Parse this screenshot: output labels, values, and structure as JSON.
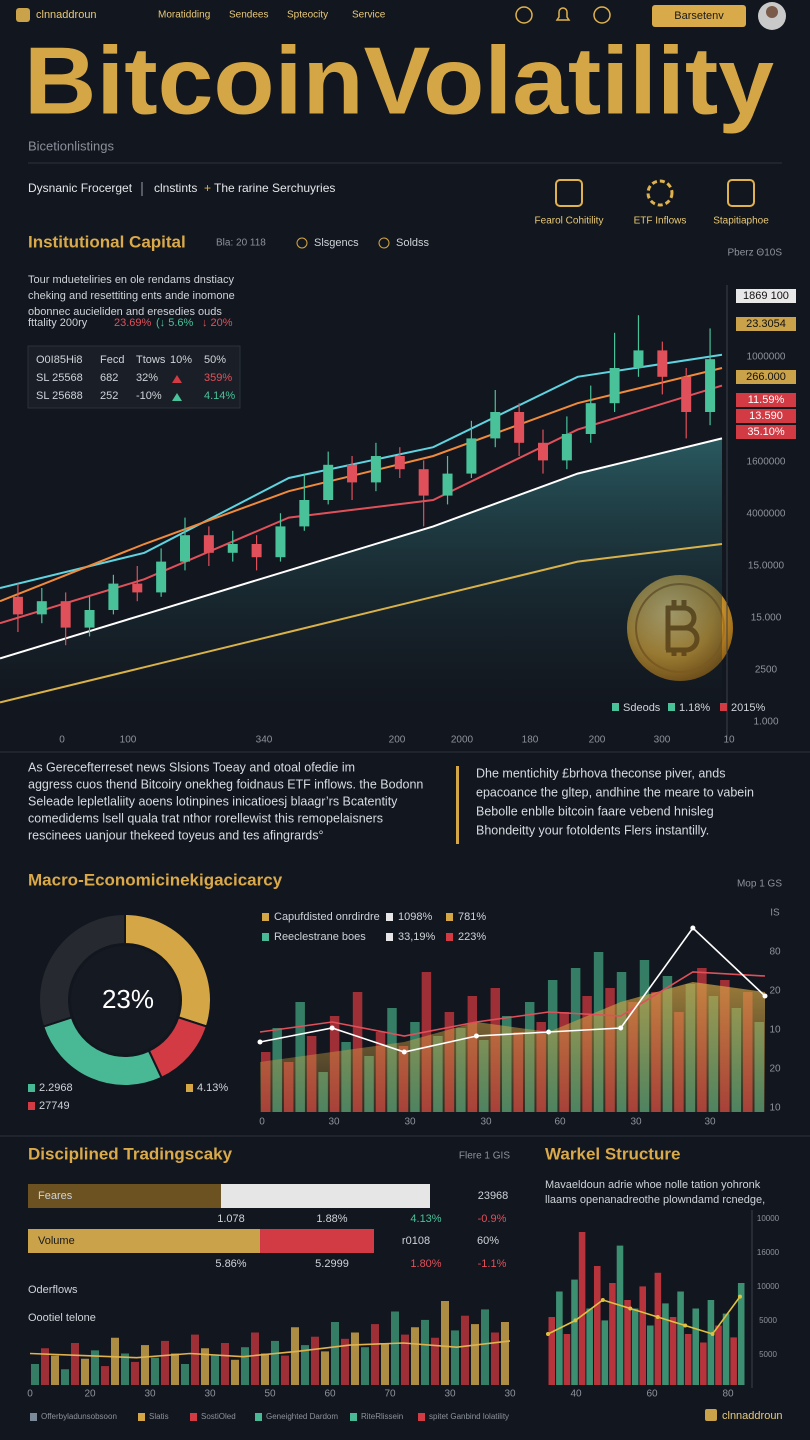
{
  "header": {
    "brand": "clnnaddroun",
    "nav": [
      "Moratidding",
      "Sendees",
      "Spteocity",
      "Service"
    ],
    "button": "Barsetenv"
  },
  "hero": {
    "title": "BitcoinVolatility",
    "subtitle": "Bicetionlistings",
    "tagline_left": "Dysnanic Frocerget",
    "tagline_mid": "clnstints",
    "tagline_arrow": "+",
    "tagline_right": "The rarine Serchuyries",
    "features": [
      "Fearol Cohitility",
      "ETF Inflows",
      "Stapitiaphoe"
    ]
  },
  "institutional": {
    "title": "Institutional Capital",
    "meta": "Bla: 20 118",
    "legend": [
      "Slsgencs",
      "Soldss"
    ],
    "corner": "Pberz Θ10S",
    "notes": [
      "Tour mdueteliries en ole rendams dnstiacy",
      "cheking and resettiting ents ande inomone",
      "obonnec aucieliden and eresedies ouds"
    ],
    "stats": [
      "fttality 200ry",
      "23.69%",
      "(↓ 5.6%",
      "↓ 20%"
    ],
    "table": [
      [
        "O0I85Hi8",
        "Fecd",
        "Ttows",
        "10%",
        "50%"
      ],
      [
        "SL 25568",
        "682",
        "32%",
        "359%"
      ],
      [
        "SL 25688",
        "252",
        "-10%",
        "4.14%"
      ]
    ]
  },
  "paragraphs": {
    "left": [
      "As Gerecefterreset news Slsions Toeay and otoal ofedie im",
      "aggress cuos thend Bitcoiry onekheg foidnaus ETF inflows. the Bodonn",
      "Seleade lepletlaliity aoens lotinpines inicatioesj blaagr’rs Bcatentity",
      "comedidems lsell quala trat nthor rorellewist this remopelaisners",
      "rescinees uanjour thekeed toyeus and tes afingrards°"
    ],
    "right": [
      "Dhe mentichity £brhova theconse piver, ands",
      "epacoance the gltep, andhine the meare to vabein",
      "Bebolle enblle bitcoin faare vebend hnisleg",
      "Bhondeitty your fotoldents Flers instantilly."
    ]
  },
  "macro": {
    "title": "Macro-Economicinekigacicarcy",
    "corner": "Mop 1 GS"
  },
  "trading": {
    "title": "Disciplined Tradingscaky",
    "corner": "Flere 1 GIS",
    "rows": [
      {
        "label": "Feares",
        "right": [
          "23968"
        ],
        "sub": [
          "1.078",
          "1.88%",
          "4.13%",
          "-0.9%"
        ],
        "segments": [
          48,
          52
        ],
        "colors": [
          "#6b5220",
          "#e6e6e6"
        ]
      },
      {
        "label": "Volume",
        "right": [
          "r0108",
          "60%"
        ],
        "sub": [
          "5.86%",
          "5.2999",
          "1.80%",
          "-1.1%"
        ],
        "segments": [
          57,
          28
        ],
        "colors": [
          "#c9a24a",
          "#d23a44"
        ]
      }
    ],
    "labels": [
      "Oderflows",
      "Oootiel telone"
    ],
    "legend": [
      "Offerbyladunsobsoon",
      "Slatis",
      "SostiOled",
      "Geneighted Dardom",
      "RiteRlissein",
      "spitet Ganbind lolatility"
    ]
  },
  "market": {
    "title": "Warkel Structure",
    "desc": [
      "Mavaeldoun adrie whoe nolle tation yohronk",
      "llaams openanadreothe plowndamd rcnedge,"
    ],
    "footer": "clnnaddroun"
  },
  "chart_data": [
    {
      "type": "candlestick",
      "ylim": [
        0,
        100
      ],
      "open": [
        28,
        24,
        27,
        21,
        25,
        31,
        29,
        36,
        42,
        38,
        40,
        37,
        44,
        50,
        58,
        54,
        60,
        57,
        51,
        56,
        64,
        70,
        63,
        59,
        65,
        72,
        80,
        84,
        78,
        70
      ],
      "high": [
        31,
        30,
        29,
        28,
        33,
        35,
        39,
        46,
        44,
        43,
        42,
        47,
        56,
        61,
        60,
        63,
        62,
        59,
        60,
        68,
        75,
        72,
        66,
        69,
        76,
        88,
        92,
        86,
        80,
        89
      ],
      "low": [
        20,
        22,
        17,
        19,
        24,
        27,
        28,
        34,
        35,
        36,
        34,
        36,
        43,
        49,
        50,
        52,
        55,
        44,
        49,
        55,
        62,
        60,
        56,
        57,
        63,
        70,
        78,
        74,
        64,
        67
      ],
      "close": [
        24,
        27,
        21,
        25,
        31,
        29,
        36,
        42,
        38,
        40,
        37,
        44,
        50,
        58,
        54,
        60,
        57,
        51,
        56,
        64,
        70,
        63,
        59,
        65,
        72,
        80,
        84,
        78,
        70,
        82
      ],
      "lines": [
        {
          "color": "#5fd3e0",
          "values": [
            30,
            38,
            55,
            62,
            78,
            83
          ]
        },
        {
          "color": "#f08a3c",
          "values": [
            27,
            40,
            52,
            60,
            72,
            80
          ]
        },
        {
          "color": "#e0505a",
          "values": [
            22,
            32,
            46,
            50,
            66,
            76
          ]
        },
        {
          "color": "#ffffff",
          "values": [
            14,
            24,
            34,
            44,
            56,
            64
          ]
        },
        {
          "color": "#d9b24a",
          "values": [
            4,
            12,
            20,
            28,
            36,
            40
          ]
        }
      ],
      "price_tags": [
        {
          "label": "1869 100",
          "box": "#e8e8e8"
        },
        {
          "label": "23.3054",
          "box": "#c9a24a"
        },
        {
          "label": "1000000"
        },
        {
          "label": "266.000",
          "box": "#c9a24a"
        },
        {
          "label": "11.59%",
          "box": "#d23a44"
        },
        {
          "label": "13.590",
          "box": "#d23a44"
        },
        {
          "label": "35.10%",
          "box": "#d23a44"
        },
        {
          "label": "1600000"
        },
        {
          "label": "4000000"
        },
        {
          "label": "15.0000"
        },
        {
          "label": "15.000"
        },
        {
          "label": "2500"
        },
        {
          "label": "1.000"
        }
      ],
      "x_labels": [
        "0",
        "100",
        "340",
        "200",
        "2000",
        "180",
        "200",
        "300",
        "10"
      ],
      "legend": [
        {
          "label": "Sdeods",
          "color": "#49c29a"
        },
        {
          "label": "1.18%",
          "color": "#49c29a"
        },
        {
          "label": "2015%",
          "color": "#d23a44"
        }
      ]
    },
    {
      "type": "pie",
      "center_label": "23%",
      "values": [
        30,
        13,
        27,
        30
      ],
      "colors": [
        "#d4a645",
        "#d23a44",
        "#49b894",
        "#262a30"
      ],
      "legend": [
        {
          "label": "2.2968",
          "color": "#49b894"
        },
        {
          "label": "27749",
          "color": "#d23a44"
        },
        {
          "label": "4.13%",
          "color": "#d4a645"
        }
      ]
    },
    {
      "type": "bar",
      "ylim": [
        0,
        100
      ],
      "colors": [
        "#b8343c",
        "#3d8f72"
      ],
      "values": [
        30,
        42,
        25,
        55,
        38,
        20,
        48,
        35,
        60,
        28,
        40,
        52,
        33,
        45,
        70,
        38,
        50,
        42,
        58,
        36,
        62,
        48,
        40,
        55,
        45,
        66,
        50,
        72,
        58,
        80,
        62,
        70,
        55,
        76,
        60,
        68,
        50,
        64,
        72,
        58,
        66,
        52,
        60,
        45
      ],
      "series": [
        {
          "color": "#d4a645",
          "values": [
            25,
            30,
            35,
            45,
            40,
            55,
            65,
            60
          ]
        },
        {
          "color": "#e0505a",
          "values": [
            40,
            45,
            38,
            45,
            50,
            48,
            70,
            68
          ]
        },
        {
          "color": "#ffffff",
          "values": [
            35,
            42,
            30,
            38,
            40,
            42,
            92,
            58
          ]
        }
      ],
      "legend": [
        {
          "label": "Capufdisted onrdirdre",
          "v1": "1098%",
          "v2": "781%",
          "color": "#d4a645"
        },
        {
          "label": "Reeclestrane boes",
          "v1": "33,19%",
          "v2": "223%",
          "color": "#49b894"
        }
      ],
      "x_labels": [
        "0",
        "30",
        "30",
        "30",
        "60",
        "30",
        "30"
      ],
      "y_labels": [
        "IS",
        "80",
        "20",
        "10",
        "20",
        "10"
      ]
    },
    {
      "type": "bar",
      "ylim": [
        0,
        100
      ],
      "colors": [
        "#3d8f72",
        "#b8343c",
        "#c9a24a"
      ],
      "values": [
        20,
        35,
        28,
        15,
        40,
        25,
        33,
        18,
        45,
        30,
        22,
        38,
        26,
        42,
        30,
        20,
        48,
        35,
        28,
        40,
        24,
        36,
        50,
        30,
        42,
        28,
        55,
        38,
        46,
        32,
        60,
        44,
        50,
        36,
        58,
        40,
        70,
        48,
        55,
        62,
        45,
        80,
        52,
        66,
        58,
        72,
        50,
        60
      ],
      "line": {
        "color": "#e0b24e",
        "values": [
          30,
          28,
          26,
          30,
          27,
          32,
          38,
          40,
          36,
          42
        ]
      },
      "x_labels": [
        "0",
        "20",
        "30",
        "30",
        "50",
        "60",
        "70",
        "30",
        "30"
      ]
    },
    {
      "type": "bar",
      "ylim": [
        0,
        100
      ],
      "colors": [
        "#b8343c",
        "#3d8f72"
      ],
      "values": [
        40,
        55,
        30,
        62,
        90,
        45,
        70,
        38,
        60,
        82,
        50,
        45,
        58,
        35,
        66,
        48,
        40,
        55,
        30,
        45,
        25,
        50,
        35,
        42,
        28,
        60
      ],
      "line": {
        "color": "#e0c040",
        "values": [
          30,
          38,
          50,
          45,
          40,
          35,
          30,
          52
        ]
      },
      "x_labels": [
        "40",
        "60",
        "80"
      ],
      "y_labels": [
        "10000",
        "16000",
        "10000",
        "5000",
        "5000"
      ]
    }
  ]
}
